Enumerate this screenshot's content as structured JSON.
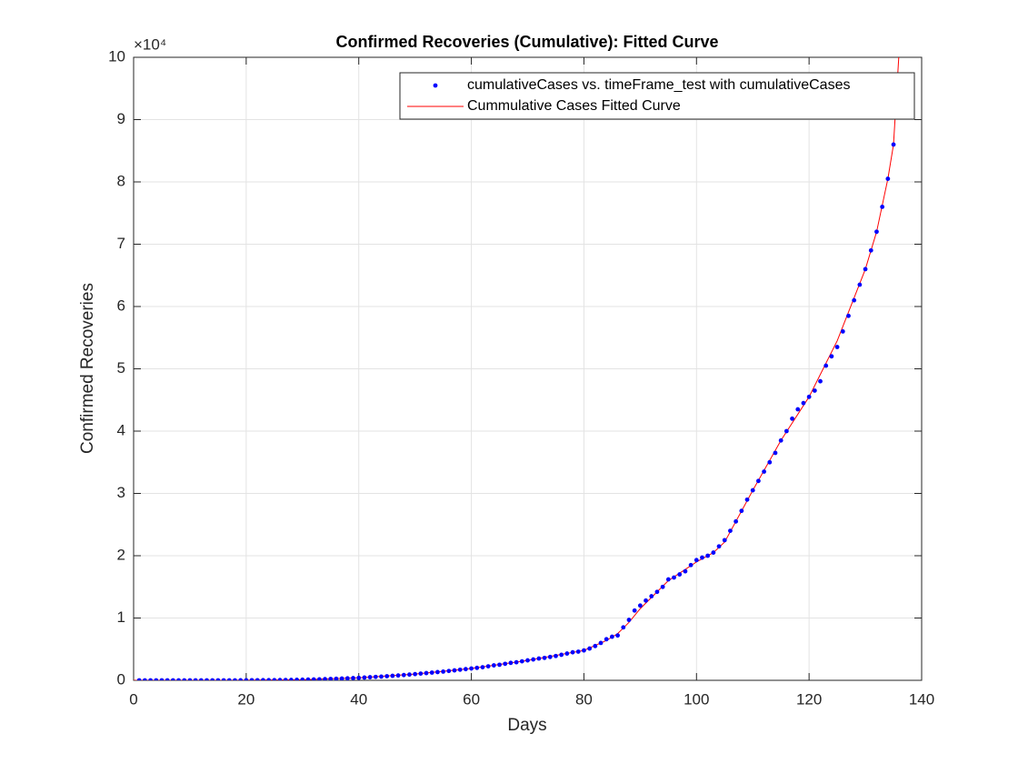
{
  "chart_data": {
    "type": "scatter_fit",
    "title": "Confirmed Recoveries (Cumulative): Fitted Curve",
    "xlabel": "Days",
    "ylabel": "Confirmed Recoveries",
    "exponent_label": "×10⁴",
    "xlim": [
      0,
      140
    ],
    "xticks": [
      0,
      20,
      40,
      60,
      80,
      100,
      120,
      140
    ],
    "ylim": [
      0,
      10
    ],
    "yticks": [
      0,
      1,
      2,
      3,
      4,
      5,
      6,
      7,
      8,
      9,
      10
    ],
    "grid": true,
    "legend": "northeast",
    "series": [
      {
        "name": "cumulativeCases vs. timeFrame_test with cumulativeCases",
        "kind": "scatter",
        "color": "#0000ff",
        "x": [
          1,
          2,
          3,
          4,
          5,
          6,
          7,
          8,
          9,
          10,
          11,
          12,
          13,
          14,
          15,
          16,
          17,
          18,
          19,
          20,
          21,
          22,
          23,
          24,
          25,
          26,
          27,
          28,
          29,
          30,
          31,
          32,
          33,
          34,
          35,
          36,
          37,
          38,
          39,
          40,
          41,
          42,
          43,
          44,
          45,
          46,
          47,
          48,
          49,
          50,
          51,
          52,
          53,
          54,
          55,
          56,
          57,
          58,
          59,
          60,
          61,
          62,
          63,
          64,
          65,
          66,
          67,
          68,
          69,
          70,
          71,
          72,
          73,
          74,
          75,
          76,
          77,
          78,
          79,
          80,
          81,
          82,
          83,
          84,
          85,
          86,
          87,
          88,
          89,
          90,
          91,
          92,
          93,
          94,
          95,
          96,
          97,
          98,
          99,
          100,
          101,
          102,
          103,
          104,
          105,
          106,
          107,
          108,
          109,
          110,
          111,
          112,
          113,
          114,
          115,
          116,
          117,
          118,
          119,
          120,
          121,
          122,
          123,
          124,
          125,
          126,
          127,
          128,
          129,
          130,
          131,
          132,
          133,
          134,
          135
        ],
        "values": [
          0,
          0,
          0,
          0,
          0,
          0,
          0,
          0,
          0,
          0,
          0,
          0,
          0,
          0,
          0,
          0,
          0,
          0,
          0.001,
          0.001,
          0.002,
          0.002,
          0.003,
          0.003,
          0.004,
          0.005,
          0.006,
          0.007,
          0.008,
          0.01,
          0.012,
          0.014,
          0.016,
          0.019,
          0.022,
          0.025,
          0.028,
          0.032,
          0.036,
          0.04,
          0.045,
          0.05,
          0.055,
          0.06,
          0.066,
          0.072,
          0.078,
          0.085,
          0.092,
          0.1,
          0.108,
          0.116,
          0.124,
          0.132,
          0.14,
          0.15,
          0.16,
          0.17,
          0.18,
          0.19,
          0.2,
          0.21,
          0.225,
          0.24,
          0.25,
          0.265,
          0.28,
          0.29,
          0.305,
          0.32,
          0.335,
          0.35,
          0.36,
          0.375,
          0.39,
          0.41,
          0.43,
          0.45,
          0.46,
          0.48,
          0.51,
          0.55,
          0.6,
          0.66,
          0.7,
          0.72,
          0.85,
          0.97,
          1.12,
          1.2,
          1.28,
          1.35,
          1.42,
          1.5,
          1.62,
          1.65,
          1.7,
          1.75,
          1.85,
          1.93,
          1.97,
          2.0,
          2.05,
          2.15,
          2.25,
          2.4,
          2.55,
          2.72,
          2.9,
          3.05,
          3.2,
          3.35,
          3.5,
          3.65,
          3.85,
          4.0,
          4.2,
          4.35,
          4.45,
          4.55,
          4.65,
          4.8,
          5.05,
          5.2,
          5.35,
          5.6,
          5.85,
          6.1,
          6.35,
          6.6,
          6.9,
          7.2,
          7.6,
          8.05,
          8.6
        ]
      },
      {
        "name": "Cummulative Cases Fitted Curve",
        "kind": "line",
        "color": "#ff0000",
        "x": [
          0,
          10,
          20,
          30,
          40,
          50,
          60,
          70,
          80,
          84,
          86,
          88,
          90,
          95,
          100,
          103,
          105,
          110,
          115,
          120,
          125,
          130,
          132,
          134,
          135,
          136
        ],
        "values": [
          0,
          0,
          0.001,
          0.01,
          0.04,
          0.1,
          0.19,
          0.32,
          0.48,
          0.64,
          0.75,
          0.93,
          1.15,
          1.6,
          1.9,
          2.05,
          2.22,
          3.05,
          3.85,
          4.55,
          5.45,
          6.6,
          7.2,
          8.05,
          8.6,
          10.1
        ]
      }
    ]
  }
}
